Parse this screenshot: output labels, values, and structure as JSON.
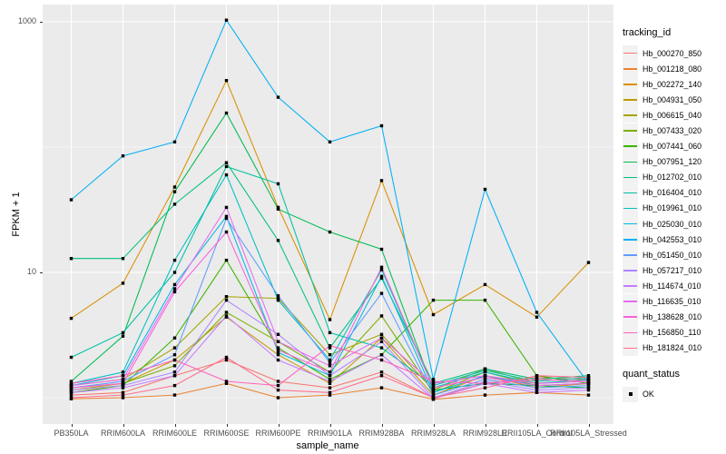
{
  "chart_data": {
    "type": "line",
    "title": "",
    "xlabel": "sample_name",
    "ylabel": "FPKM + 1",
    "y_scale": "log10",
    "y_ticks": [
      "1000",
      "10"
    ],
    "y_tick_values": [
      1000,
      10
    ],
    "y_minor_values": [
      100,
      1
    ],
    "ylim": [
      0.85,
      1150
    ],
    "grid": true,
    "legend_position": "right",
    "legend_title": "tracking_id",
    "point_shape_legend": {
      "title": "quant_status",
      "items": [
        {
          "label": "OK"
        }
      ]
    },
    "categories": [
      "PB350LA",
      "RRIM600LA",
      "RRIM600LE",
      "RRIM600SE",
      "RRIM600PE",
      "RRIM901LA",
      "RRIM928BA",
      "RRIM928LA",
      "RRIM928LE",
      "RRII105LA_Control",
      "RRII105LA_Stressed"
    ],
    "series": [
      {
        "name": "Hb_000270_850",
        "color": "#F8766D",
        "values": [
          1.05,
          1.1,
          1.5,
          2.0,
          1.35,
          1.2,
          1.6,
          1.0,
          1.3,
          1.45,
          1.4
        ]
      },
      {
        "name": "Hb_001218_080",
        "color": "#EA8331",
        "values": [
          0.98,
          1.0,
          1.05,
          1.3,
          1.0,
          1.05,
          1.2,
          0.97,
          1.05,
          1.1,
          1.05
        ]
      },
      {
        "name": "Hb_002272_140",
        "color": "#D89000",
        "values": [
          4.3,
          8.2,
          48,
          340,
          33,
          4.2,
          54,
          4.6,
          8.0,
          4.4,
          12
        ]
      },
      {
        "name": "Hb_004931_050",
        "color": "#C09B00",
        "values": [
          1.15,
          1.3,
          2.0,
          4.4,
          2.2,
          1.3,
          3.0,
          1.05,
          1.5,
          1.2,
          1.3
        ]
      },
      {
        "name": "Hb_006615_040",
        "color": "#A3A500",
        "values": [
          1.25,
          1.4,
          2.5,
          6.4,
          6.2,
          2.2,
          3.2,
          1.15,
          1.7,
          1.3,
          1.4
        ]
      },
      {
        "name": "Hb_007433_020",
        "color": "#7CAE00",
        "values": [
          1.2,
          1.3,
          1.8,
          4.8,
          2.8,
          1.6,
          4.5,
          1.1,
          1.6,
          1.25,
          1.3
        ]
      },
      {
        "name": "Hb_007441_060",
        "color": "#39B600",
        "values": [
          1.1,
          1.25,
          3.0,
          12.5,
          2.5,
          1.4,
          2.2,
          6.0,
          6.0,
          1.5,
          1.3
        ]
      },
      {
        "name": "Hb_007951_120",
        "color": "#00BB4E",
        "values": [
          1.35,
          3.1,
          44,
          187,
          32,
          21,
          15.3,
          1.15,
          1.3,
          1.25,
          1.2
        ]
      },
      {
        "name": "Hb_012702_010",
        "color": "#00BF7D",
        "values": [
          12.9,
          12.9,
          35,
          75,
          18,
          2.5,
          9.0,
          1.3,
          1.7,
          1.4,
          1.5
        ]
      },
      {
        "name": "Hb_016404_010",
        "color": "#00C1A3",
        "values": [
          2.1,
          3.3,
          10,
          70,
          51,
          3.3,
          2.5,
          1.25,
          1.65,
          1.35,
          1.45
        ]
      },
      {
        "name": "Hb_019961_010",
        "color": "#00BFC4",
        "values": [
          1.3,
          1.6,
          12.5,
          60,
          6.0,
          2.0,
          10.5,
          1.2,
          1.6,
          1.3,
          1.4
        ]
      },
      {
        "name": "Hb_025030_010",
        "color": "#00B9E3",
        "values": [
          1.25,
          1.5,
          8.0,
          28,
          2.3,
          1.5,
          9.3,
          1.1,
          1.5,
          1.25,
          1.3
        ]
      },
      {
        "name": "Hb_042553_010",
        "color": "#00B0F6",
        "values": [
          38,
          85,
          110,
          1030,
          250,
          110,
          148,
          1.4,
          46,
          4.8,
          1.3
        ]
      },
      {
        "name": "Hb_051450_010",
        "color": "#619CFF",
        "values": [
          1.2,
          1.35,
          2.2,
          27,
          6.5,
          1.9,
          6.8,
          1.05,
          1.4,
          1.2,
          1.25
        ]
      },
      {
        "name": "Hb_057217_010",
        "color": "#AE87FF",
        "values": [
          1.15,
          1.25,
          1.6,
          6.0,
          3.2,
          1.5,
          2.8,
          1.0,
          1.35,
          1.15,
          1.2
        ]
      },
      {
        "name": "Hb_114674_010",
        "color": "#C77CFF",
        "values": [
          1.1,
          1.2,
          1.5,
          4.5,
          2.0,
          1.35,
          2.2,
          0.98,
          1.3,
          1.1,
          1.15
        ]
      },
      {
        "name": "Hb_116635_010",
        "color": "#E76BF3",
        "values": [
          1.25,
          1.4,
          7.4,
          33,
          2.8,
          1.8,
          3.0,
          1.3,
          1.5,
          1.3,
          1.35
        ]
      },
      {
        "name": "Hb_138628_010",
        "color": "#FA62DB",
        "values": [
          1.2,
          1.3,
          7.0,
          21,
          2.4,
          1.6,
          11,
          1.2,
          1.45,
          1.25,
          1.3
        ]
      },
      {
        "name": "Hb_156850_110",
        "color": "#FF62BC",
        "values": [
          1.3,
          1.5,
          2.0,
          1.35,
          1.25,
          2.6,
          2.0,
          1.35,
          1.3,
          1.4,
          1.35
        ]
      },
      {
        "name": "Hb_181824_010",
        "color": "#FF6C90",
        "values": [
          1.0,
          1.05,
          1.25,
          2.1,
          1.15,
          1.1,
          1.5,
          1.0,
          1.2,
          1.5,
          1.45
        ]
      }
    ]
  },
  "colors": {
    "panel_bg": "#EBEBEB",
    "grid": "#FFFFFF",
    "tick_text": "#4D4D4D",
    "axis_text": "#000000",
    "point": "#000000",
    "legend_key_bg": "#F2F2F2"
  }
}
